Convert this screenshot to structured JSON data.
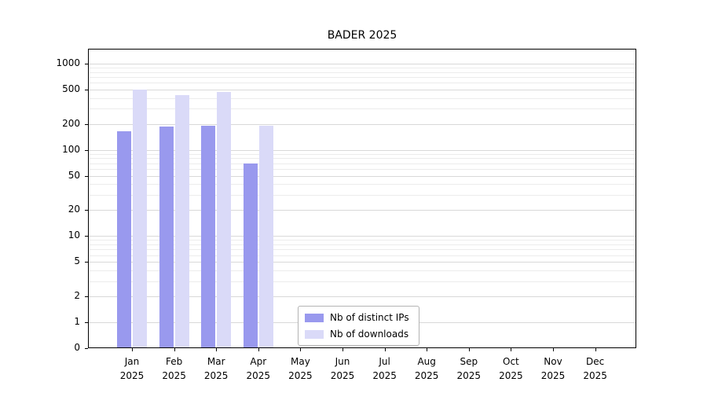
{
  "chart_data": {
    "type": "bar",
    "title": "BADER 2025",
    "categories": [
      "Jan",
      "Feb",
      "Mar",
      "Apr",
      "May",
      "Jun",
      "Jul",
      "Aug",
      "Sep",
      "Oct",
      "Nov",
      "Dec"
    ],
    "year": "2025",
    "series": [
      {
        "name": "Nb of distinct IPs",
        "color": "#9999ee",
        "values": [
          165,
          185,
          192,
          70,
          0,
          0,
          0,
          0,
          0,
          0,
          0,
          0
        ]
      },
      {
        "name": "Nb of downloads",
        "color": "#dadaf8",
        "values": [
          500,
          430,
          465,
          190,
          0,
          0,
          0,
          0,
          0,
          0,
          0,
          0
        ]
      }
    ],
    "yscale": "symlog",
    "yticks": [
      0,
      1,
      2,
      5,
      10,
      20,
      50,
      100,
      200,
      500,
      1000
    ],
    "ylim": [
      0,
      1400
    ],
    "xlabel": "",
    "ylabel": "",
    "grid": "horizontal",
    "legend_position": "lower center"
  },
  "colors": {
    "distinct_ips": "#9999ee",
    "downloads": "#dadaf8",
    "grid_major": "#d9d9d9",
    "grid_minor": "#ececec",
    "axis": "#000000",
    "background": "#ffffff"
  }
}
